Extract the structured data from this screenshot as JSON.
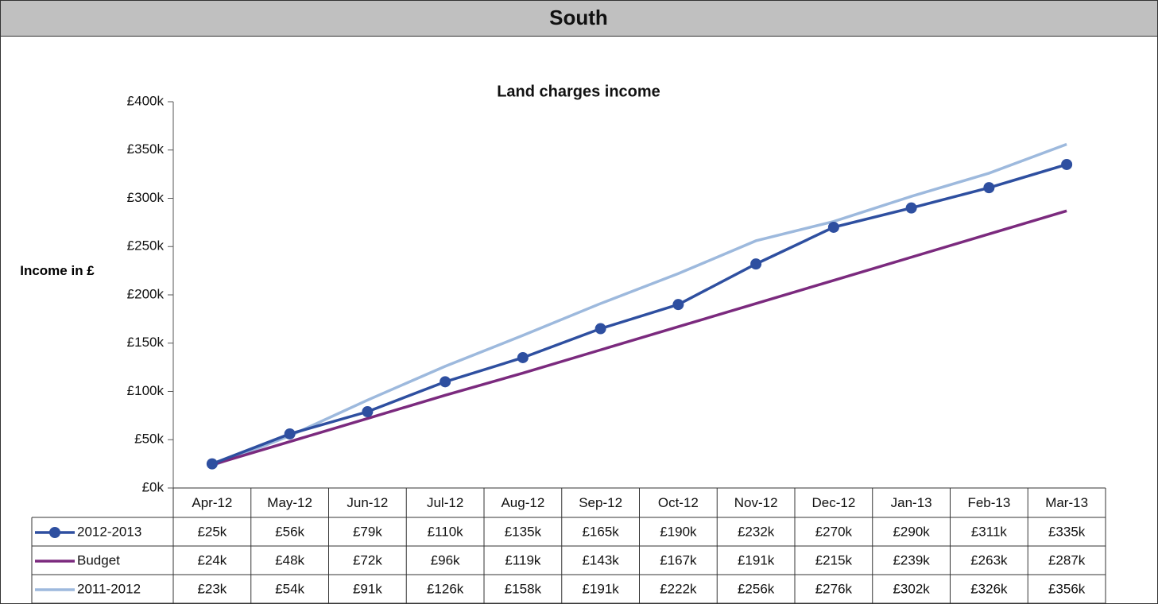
{
  "header": {
    "title": "South"
  },
  "chart_data": {
    "type": "line",
    "title": "Land charges income",
    "y_label": "Income in £",
    "categories": [
      "Apr-12",
      "May-12",
      "Jun-12",
      "Jul-12",
      "Aug-12",
      "Sep-12",
      "Oct-12",
      "Nov-12",
      "Dec-12",
      "Jan-13",
      "Feb-13",
      "Mar-13"
    ],
    "ylim": [
      0,
      400
    ],
    "yticks": [
      {
        "value": 0,
        "label": "£0k"
      },
      {
        "value": 50,
        "label": "£50k"
      },
      {
        "value": 100,
        "label": "£100k"
      },
      {
        "value": 150,
        "label": "£150k"
      },
      {
        "value": 200,
        "label": "£200k"
      },
      {
        "value": 250,
        "label": "£250k"
      },
      {
        "value": 300,
        "label": "£300k"
      },
      {
        "value": 350,
        "label": "£350k"
      },
      {
        "value": 400,
        "label": "£400k"
      }
    ],
    "series": [
      {
        "name": "2012-2013",
        "color": "#2e4fa0",
        "marker": true,
        "values": [
          25,
          56,
          79,
          110,
          135,
          165,
          190,
          232,
          270,
          290,
          311,
          335
        ],
        "value_labels": [
          "£25k",
          "£56k",
          "£79k",
          "£110k",
          "£135k",
          "£165k",
          "£190k",
          "£232k",
          "£270k",
          "£290k",
          "£311k",
          "£335k"
        ]
      },
      {
        "name": "Budget",
        "color": "#7b2a7e",
        "marker": false,
        "values": [
          24,
          48,
          72,
          96,
          119,
          143,
          167,
          191,
          215,
          239,
          263,
          287
        ],
        "value_labels": [
          "£24k",
          "£48k",
          "£72k",
          "£96k",
          "£119k",
          "£143k",
          "£167k",
          "£191k",
          "£215k",
          "£239k",
          "£263k",
          "£287k"
        ]
      },
      {
        "name": "2011-2012",
        "color": "#9db9dd",
        "marker": false,
        "values": [
          23,
          54,
          91,
          126,
          158,
          191,
          222,
          256,
          276,
          302,
          326,
          356
        ],
        "value_labels": [
          "£23k",
          "£54k",
          "£91k",
          "£126k",
          "£158k",
          "£191k",
          "£222k",
          "£256k",
          "£276k",
          "£302k",
          "£326k",
          "£356k"
        ]
      }
    ]
  }
}
